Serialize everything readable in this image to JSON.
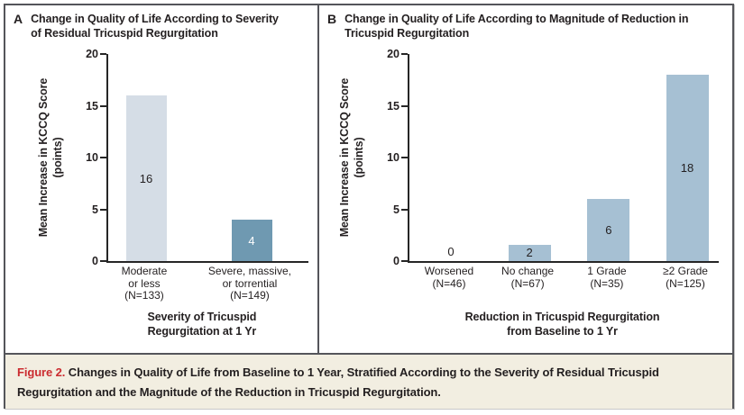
{
  "colors": {
    "border": "#54555a",
    "axis": "#262626",
    "text": "#231f20",
    "caption_bg": "#f2eee1",
    "caption_label": "#cb2c30",
    "bar_light": "#d5dde6",
    "bar_dark": "#6f99b1",
    "bar_medium": "#a6c0d3"
  },
  "caption": {
    "label": "Figure 2.",
    "text": "Changes in Quality of Life from Baseline to 1 Year, Stratified According to the Severity of Residual Tricuspid Regurgitation and the Magnitude of the Reduction in Tricuspid Regurgitation."
  },
  "chart_data": [
    {
      "type": "bar",
      "panel_letter": "A",
      "title": "Change in Quality of Life According to Severity of Residual Tricuspid Regurgitation",
      "title_lines": [
        "Change in Quality of Life According to Severity",
        "of Residual Tricuspid Regurgitation"
      ],
      "ylabel": "Mean Increase in KCCQ Score (points)",
      "ylabel_lines": [
        "Mean Increase in KCCQ Score",
        "(points)"
      ],
      "xlabel": "Severity of Tricuspid Regurgitation at 1 Yr",
      "xlabel_lines": [
        "Severity of Tricuspid",
        "Regurgitation at 1 Yr"
      ],
      "ylim": [
        0,
        20
      ],
      "yticks": [
        0,
        5,
        10,
        15,
        20
      ],
      "grid": false,
      "legend": "none",
      "categories": [
        "Moderate or less (N=133)",
        "Severe, massive, or torrential (N=149)"
      ],
      "values": [
        16,
        4
      ],
      "bars": [
        {
          "category_lines": [
            "Moderate",
            "or less",
            "(N=133)"
          ],
          "value": 16,
          "display_height": 16,
          "color": "#d5dde6",
          "label_color": "#231f20"
        },
        {
          "category_lines": [
            "Severe, massive,",
            "or torrential",
            "(N=149)"
          ],
          "value": 4,
          "display_height": 4,
          "color": "#6f99b1",
          "label_color": "#ffffff"
        }
      ]
    },
    {
      "type": "bar",
      "panel_letter": "B",
      "title": "Change in Quality of Life According to Magnitude of Reduction in Tricuspid Regurgitation",
      "title_lines": [
        "Change in Quality of Life According to Magnitude of Reduction in",
        "Tricuspid Regurgitation"
      ],
      "ylabel": "Mean Increase in KCCQ Score (points)",
      "ylabel_lines": [
        "Mean Increase in KCCQ Score",
        "(points)"
      ],
      "xlabel": "Reduction in Tricuspid Regurgitation from Baseline to 1 Yr",
      "xlabel_lines": [
        "Reduction in Tricuspid Regurgitation",
        "from Baseline to 1 Yr"
      ],
      "ylim": [
        0,
        20
      ],
      "yticks": [
        0,
        5,
        10,
        15,
        20
      ],
      "grid": false,
      "legend": "none",
      "categories": [
        "Worsened (N=46)",
        "No change (N=67)",
        "1 Grade (N=35)",
        "≥2 Grade (N=125)"
      ],
      "values": [
        0,
        2,
        6,
        18
      ],
      "bars": [
        {
          "category_lines": [
            "Worsened",
            "(N=46)"
          ],
          "value": 0,
          "display_height": 0,
          "color": "#a6c0d3",
          "label_color": "#231f20"
        },
        {
          "category_lines": [
            "No change",
            "(N=67)"
          ],
          "value": 2,
          "display_height": 1.6,
          "color": "#a6c0d3",
          "label_color": "#231f20"
        },
        {
          "category_lines": [
            "1 Grade",
            "(N=35)"
          ],
          "value": 6,
          "display_height": 6,
          "color": "#a6c0d3",
          "label_color": "#231f20"
        },
        {
          "category_lines": [
            "≥2 Grade",
            "(N=125)"
          ],
          "value": 18,
          "display_height": 18,
          "color": "#a6c0d3",
          "label_color": "#231f20"
        }
      ]
    }
  ]
}
